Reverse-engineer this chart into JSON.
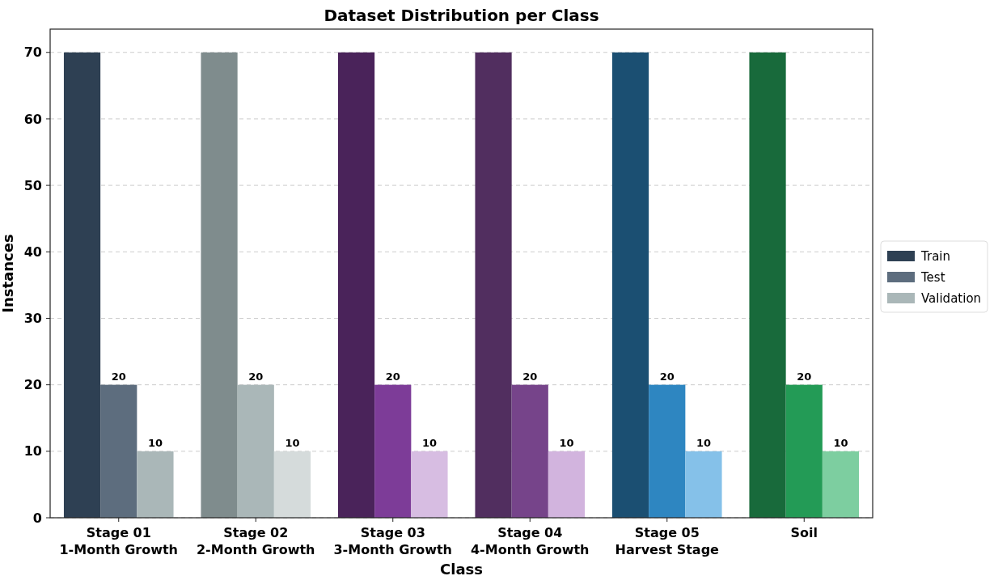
{
  "chart_data": {
    "type": "bar",
    "title": "Dataset Distribution per Class",
    "xlabel": "Class",
    "ylabel": "Instances",
    "categories": [
      "Stage 01\n1-Month Growth",
      "Stage 02\n2-Month Growth",
      "Stage 03\n3-Month Growth",
      "Stage 04\n4-Month Growth",
      "Stage 05\nHarvest Stage",
      "Soil"
    ],
    "series": [
      {
        "name": "Train",
        "color": "#2e4053",
        "colors": [
          "#2e4053",
          "#7f8c8d",
          "#4a235a",
          "#512e5f",
          "#1b4f72",
          "#186a3b"
        ],
        "values": [
          70,
          70,
          70,
          70,
          70,
          70
        ]
      },
      {
        "name": "Test",
        "color": "#5d6d7e",
        "colors": [
          "#5d6d7e",
          "#aab7b8",
          "#7d3c98",
          "#76448a",
          "#2e86c1",
          "#239b56"
        ],
        "values": [
          20,
          20,
          20,
          20,
          20,
          20
        ],
        "value_labels": [
          "20",
          "20",
          "20",
          "20",
          "20",
          "20"
        ]
      },
      {
        "name": "Validation",
        "color": "#aab7b8",
        "colors": [
          "#aab7b8",
          "#d5dbdb",
          "#d7bde2",
          "#d2b4de",
          "#85c1e9",
          "#7dcea0"
        ],
        "values": [
          10,
          10,
          10,
          10,
          10,
          10
        ],
        "value_labels": [
          "10",
          "10",
          "10",
          "10",
          "10",
          "10"
        ]
      }
    ],
    "ylim": [
      0,
      73.5
    ],
    "yticks": [
      0,
      10,
      20,
      30,
      40,
      50,
      60,
      70
    ],
    "grid": "y",
    "legend": "right"
  }
}
